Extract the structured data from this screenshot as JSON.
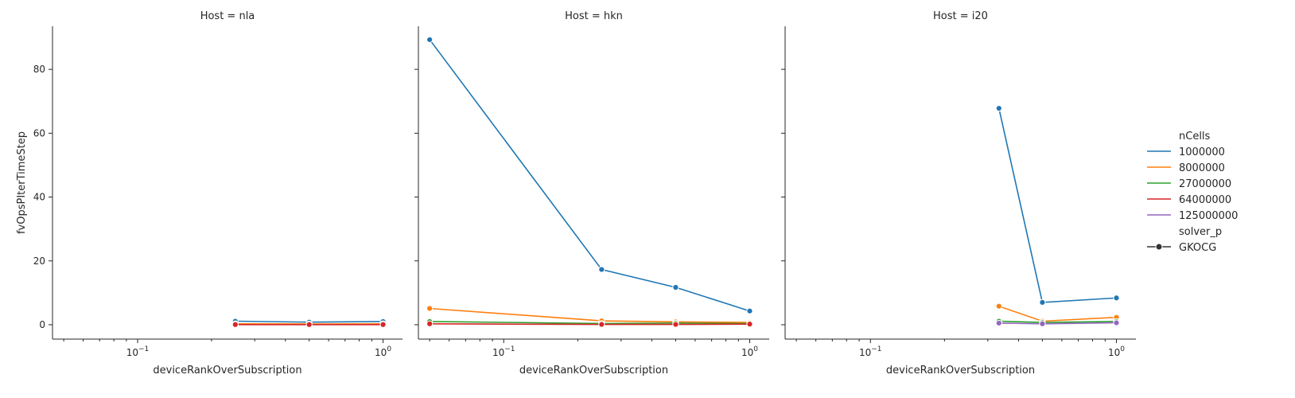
{
  "chart_data": {
    "type": "line",
    "xscale": "log",
    "xlim": [
      0.045,
      1.2
    ],
    "ylim": [
      -4.5,
      93.5
    ],
    "xlabel": "deviceRankOverSubscription",
    "ylabel": "fvOpsPIterTimeStep",
    "x_ticks": [
      {
        "value": 0.1,
        "base": "10",
        "exp": "−1"
      },
      {
        "value": 1,
        "base": "10",
        "exp": "0"
      }
    ],
    "y_ticks": [
      0,
      20,
      40,
      60,
      80
    ],
    "legend": {
      "placement": "right",
      "hue_title": "nCells",
      "hue_entries": [
        {
          "label": "1000000",
          "color": "#1f77b4"
        },
        {
          "label": "8000000",
          "color": "#ff7f0e"
        },
        {
          "label": "27000000",
          "color": "#2ca02c"
        },
        {
          "label": "64000000",
          "color": "#d62728"
        },
        {
          "label": "125000000",
          "color": "#9467bd"
        }
      ],
      "style_title": "solver_p",
      "style_entries": [
        {
          "label": "GKOCG",
          "color": "#333333"
        }
      ]
    },
    "panels": [
      {
        "title": "Host = nla",
        "series": [
          {
            "nCells": "1000000",
            "color": "#1f77b4",
            "x": [
              0.25,
              0.5,
              1
            ],
            "y": [
              1.1,
              0.8,
              1.0
            ]
          },
          {
            "nCells": "8000000",
            "color": "#ff7f0e",
            "x": [
              0.25,
              0.5,
              1
            ],
            "y": [
              0.3,
              0.25,
              0.3
            ]
          },
          {
            "nCells": "64000000",
            "color": "#d62728",
            "x": [
              0.25,
              0.5,
              1
            ],
            "y": [
              0.05,
              0.05,
              0.05
            ]
          }
        ]
      },
      {
        "title": "Host = hkn",
        "series": [
          {
            "nCells": "1000000",
            "color": "#1f77b4",
            "x": [
              0.05,
              0.25,
              0.5,
              1
            ],
            "y": [
              89.3,
              17.3,
              11.7,
              4.3
            ]
          },
          {
            "nCells": "8000000",
            "color": "#ff7f0e",
            "x": [
              0.05,
              0.25,
              0.5,
              1
            ],
            "y": [
              5.1,
              1.2,
              0.9,
              0.7
            ]
          },
          {
            "nCells": "27000000",
            "color": "#2ca02c",
            "x": [
              0.05,
              0.25,
              0.5,
              1
            ],
            "y": [
              1.0,
              0.4,
              0.5,
              0.4
            ]
          },
          {
            "nCells": "64000000",
            "color": "#d62728",
            "x": [
              0.05,
              0.25,
              0.5,
              1
            ],
            "y": [
              0.3,
              0.1,
              0.1,
              0.2
            ]
          }
        ]
      },
      {
        "title": "Host = i20",
        "series": [
          {
            "nCells": "1000000",
            "color": "#1f77b4",
            "x": [
              0.333,
              0.5,
              1
            ],
            "y": [
              67.8,
              7.0,
              8.4
            ]
          },
          {
            "nCells": "8000000",
            "color": "#ff7f0e",
            "x": [
              0.333,
              0.5,
              1
            ],
            "y": [
              5.8,
              1.1,
              2.3
            ]
          },
          {
            "nCells": "27000000",
            "color": "#2ca02c",
            "x": [
              0.333,
              0.5,
              1
            ],
            "y": [
              1.1,
              0.7,
              1.0
            ]
          },
          {
            "nCells": "125000000",
            "color": "#9467bd",
            "x": [
              0.333,
              0.5,
              1
            ],
            "y": [
              0.5,
              0.3,
              0.6
            ]
          }
        ]
      }
    ]
  }
}
